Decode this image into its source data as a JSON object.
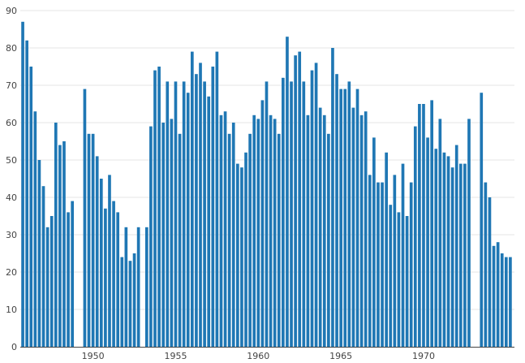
{
  "chart_data": {
    "type": "bar",
    "title": "",
    "xlabel": "",
    "ylabel": "",
    "x_start_year": 1945.75,
    "x_step_years": 0.25,
    "xlim": [
      1945.6,
      1975.5
    ],
    "ylim": [
      0,
      90
    ],
    "grid": true,
    "bar_color": "#1f77b4",
    "x_ticks": [
      {
        "value": 1950,
        "label": "1950"
      },
      {
        "value": 1955,
        "label": "1955"
      },
      {
        "value": 1960,
        "label": "1960"
      },
      {
        "value": 1965,
        "label": "1965"
      },
      {
        "value": 1970,
        "label": "1970"
      }
    ],
    "y_ticks": [
      {
        "value": 0,
        "label": "0"
      },
      {
        "value": 10,
        "label": "10"
      },
      {
        "value": 20,
        "label": "20"
      },
      {
        "value": 30,
        "label": "30"
      },
      {
        "value": 40,
        "label": "40"
      },
      {
        "value": 50,
        "label": "50"
      },
      {
        "value": 60,
        "label": "60"
      },
      {
        "value": 70,
        "label": "70"
      },
      {
        "value": 80,
        "label": "80"
      },
      {
        "value": 90,
        "label": "90"
      }
    ],
    "values": [
      87,
      82,
      75,
      63,
      50,
      43,
      32,
      35,
      60,
      54,
      55,
      36,
      39,
      null,
      null,
      69,
      57,
      57,
      51,
      45,
      37,
      46,
      39,
      36,
      24,
      32,
      23,
      25,
      32,
      null,
      32,
      59,
      74,
      75,
      60,
      71,
      61,
      71,
      57,
      71,
      68,
      79,
      73,
      76,
      71,
      67,
      75,
      79,
      62,
      63,
      57,
      60,
      49,
      48,
      52,
      57,
      62,
      61,
      66,
      71,
      62,
      61,
      57,
      72,
      83,
      71,
      78,
      79,
      71,
      62,
      74,
      76,
      64,
      62,
      57,
      80,
      73,
      69,
      69,
      71,
      64,
      69,
      62,
      63,
      46,
      56,
      44,
      44,
      52,
      38,
      46,
      36,
      49,
      35,
      44,
      59,
      65,
      65,
      56,
      66,
      53,
      61,
      52,
      51,
      48,
      54,
      49,
      49,
      61,
      null,
      null,
      68,
      44,
      40,
      27,
      28,
      25,
      24,
      24
    ]
  }
}
